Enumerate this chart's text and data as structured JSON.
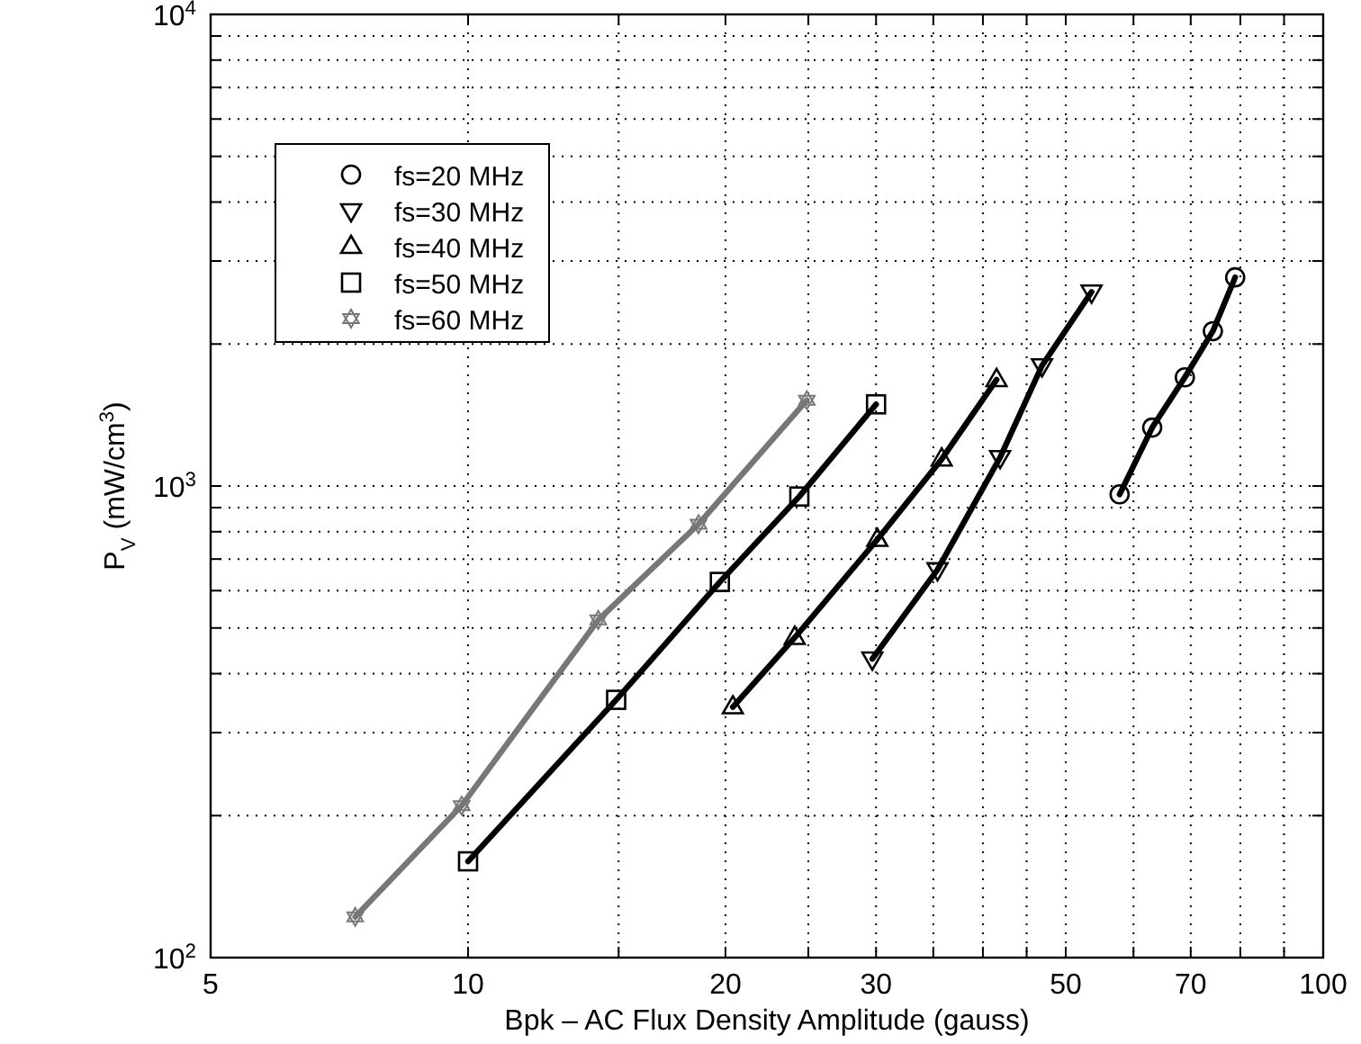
{
  "chart_data": {
    "type": "line",
    "xlabel": "Bpk – AC Flux Density Amplitude (gauss)",
    "ylabel": "P$_{V}$ (mW/cm$^{3}$)",
    "log": "xy",
    "grid": true,
    "legend": "top left",
    "line_style": "solid",
    "xlim": [
      5,
      100
    ],
    "xticks": [
      5,
      10,
      {
        "value": 15,
        "label": null
      },
      20,
      {
        "value": 25,
        "label": null
      },
      30,
      {
        "value": 35,
        "label": null
      },
      {
        "value": 40,
        "label": null
      },
      {
        "value": 45,
        "label": null
      },
      50,
      {
        "value": 60,
        "label": null
      },
      70,
      {
        "value": 80,
        "label": null
      },
      {
        "value": 90,
        "label": null
      },
      100
    ],
    "ylim": [
      100,
      10000
    ],
    "yticks": [
      {
        "value": 100,
        "label": "10$^{2}$"
      },
      {
        "value": 200,
        "label": null
      },
      {
        "value": 300,
        "label": null
      },
      {
        "value": 400,
        "label": null
      },
      {
        "value": 500,
        "label": null
      },
      {
        "value": 600,
        "label": null
      },
      {
        "value": 700,
        "label": null
      },
      {
        "value": 800,
        "label": null
      },
      {
        "value": 900,
        "label": null
      },
      {
        "value": 1000,
        "label": "10$^{3}$"
      },
      {
        "value": 2000,
        "label": null
      },
      {
        "value": 3000,
        "label": null
      },
      {
        "value": 4000,
        "label": null
      },
      {
        "value": 5000,
        "label": null
      },
      {
        "value": 6000,
        "label": null
      },
      {
        "value": 7000,
        "label": null
      },
      {
        "value": 8000,
        "label": null
      },
      {
        "value": 9000,
        "label": null
      },
      {
        "value": 10000,
        "label": "10$^{4}$"
      }
    ],
    "series": [
      {
        "name": "fs=20 MHz",
        "color": "#000000",
        "marker": "circle",
        "x": [
          57.8,
          63.1,
          68.9,
          74.3,
          78.9
        ],
        "values": [
          960,
          1330,
          1700,
          2130,
          2770
        ]
      },
      {
        "name": "fs=30 MHz",
        "color": "#000000",
        "marker": "triangle-down",
        "x": [
          29.7,
          35.4,
          41.9,
          46.9,
          53.6
        ],
        "values": [
          430,
          665,
          1150,
          1800,
          2580
        ]
      },
      {
        "name": "fs=40 MHz",
        "color": "#000000",
        "marker": "triangle",
        "x": [
          20.4,
          24.1,
          30.1,
          35.8,
          41.5
        ],
        "values": [
          340,
          477,
          770,
          1140,
          1680
        ]
      },
      {
        "name": "fs=50 MHz",
        "color": "#000000",
        "marker": "square",
        "x": [
          10.0,
          14.9,
          19.7,
          24.4,
          30.0
        ],
        "values": [
          160,
          352,
          626,
          950,
          1490
        ]
      },
      {
        "name": "fs=60 MHz",
        "color": "#777777",
        "marker": "star",
        "x": [
          7.38,
          9.83,
          14.2,
          18.6,
          24.9
        ],
        "values": [
          122,
          210,
          520,
          830,
          1520
        ]
      }
    ]
  }
}
